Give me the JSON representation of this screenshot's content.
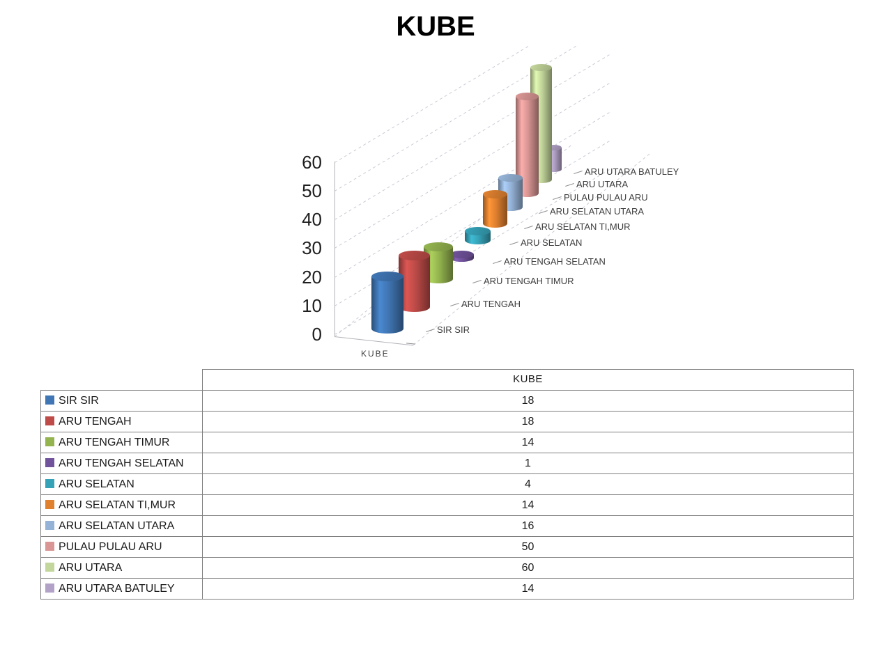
{
  "chart": {
    "title": "KUBE",
    "series_axis_label": "KUBE"
  },
  "chart_data": {
    "type": "bar",
    "subtype": "3d-cylinder",
    "title": "KUBE",
    "categories": [
      "SIR SIR",
      "ARU TENGAH",
      "ARU TENGAH TIMUR",
      "ARU TENGAH SELATAN",
      "ARU SELATAN",
      "ARU SELATAN TI,MUR",
      "ARU SELATAN UTARA",
      "PULAU PULAU ARU",
      "ARU UTARA",
      "ARU UTARA BATULEY"
    ],
    "series": [
      {
        "name": "KUBE",
        "values": [
          18,
          18,
          14,
          1,
          4,
          14,
          16,
          50,
          60,
          14
        ]
      }
    ],
    "colors": [
      "#4076B4",
      "#BE4B48",
      "#94B44F",
      "#71539B",
      "#36A2B8",
      "#E0812F",
      "#95B3D7",
      "#D99694",
      "#C3D69B",
      "#B3A2C7"
    ],
    "xlabel": "KUBE",
    "ylabel": "",
    "ylim": [
      0,
      60
    ],
    "yticks": [
      0,
      10,
      20,
      30,
      40,
      50,
      60
    ],
    "grid": "dashed-depth-gridlines",
    "legend_position": "table-below-with-swatches"
  },
  "table": {
    "header": "KUBE"
  }
}
